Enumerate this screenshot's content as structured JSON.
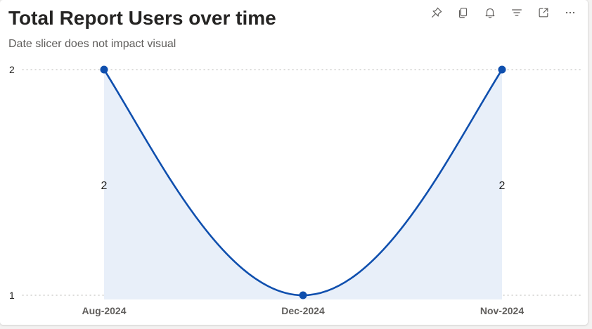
{
  "card": {
    "title": "Total Report Users over time",
    "subtitle": "Date slicer does not impact visual"
  },
  "toolbar": {
    "items": [
      {
        "name": "pin-icon"
      },
      {
        "name": "copy-icon"
      },
      {
        "name": "bell-icon"
      },
      {
        "name": "filter-icon"
      },
      {
        "name": "focus-mode-icon"
      },
      {
        "name": "more-options-icon"
      }
    ]
  },
  "colors": {
    "line": "#0f4fae",
    "area": "#e8eff9",
    "grid": "#c8c6c4"
  },
  "chart_data": {
    "type": "line",
    "area_fill": true,
    "smooth": true,
    "categories": [
      "Aug-2024",
      "Dec-2024",
      "Nov-2024"
    ],
    "series": [
      {
        "values": [
          2,
          1,
          2
        ]
      }
    ],
    "data_labels": [
      "2",
      "",
      "2"
    ],
    "ylim": [
      1,
      2
    ],
    "yticks": [
      "2",
      "1"
    ],
    "grid": "horizontal-dotted",
    "legend": "none",
    "title": "Total Report Users over time",
    "subtitle": "Date slicer does not impact visual",
    "xlabel": "",
    "ylabel": ""
  }
}
